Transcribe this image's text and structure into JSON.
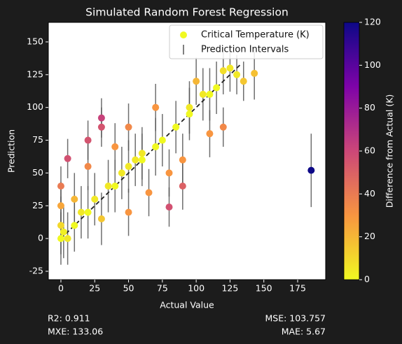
{
  "chart_data": {
    "type": "scatter",
    "title": "Simulated Random Forest Regression",
    "xlabel": "Actual Value",
    "ylabel": "Prediction",
    "colorbar_label": "Difference from Actual (K)",
    "colormap": "plasma_r",
    "clim": [
      0,
      120
    ],
    "cticks": [
      0,
      20,
      40,
      60,
      80,
      100,
      120
    ],
    "legend": [
      "Critical Temperature (K)",
      "Prediction Intervals"
    ],
    "legend_loc": "upper right",
    "xlim": [
      -9.3,
      195.7
    ],
    "ylim": [
      -31.4,
      164.9
    ],
    "xticks": [
      0,
      25,
      50,
      75,
      100,
      125,
      150,
      175
    ],
    "yticks": [
      -25,
      0,
      25,
      50,
      75,
      100,
      125,
      150
    ],
    "errorbar_color": "#555555",
    "reference_line": {
      "x": [
        0,
        133
      ],
      "y": [
        0,
        133
      ],
      "color": "#222222"
    },
    "series": [
      {
        "name": "Critical Temperature (K)",
        "x": [
          0,
          0,
          0,
          0,
          2,
          5,
          10,
          15,
          20,
          20,
          30,
          30,
          25,
          35,
          40,
          45,
          50,
          50,
          55,
          60,
          65,
          70,
          75,
          80,
          80,
          85,
          90,
          95,
          100,
          105,
          110,
          115,
          120,
          125,
          130,
          135,
          143,
          185,
          10,
          40,
          60,
          95,
          20,
          70,
          110,
          30,
          50,
          90,
          5,
          120
        ],
        "values": [
          0,
          10,
          25,
          40,
          5,
          61,
          30,
          20,
          55,
          75,
          92,
          85,
          30,
          40,
          70,
          50,
          20,
          85,
          60,
          65,
          35,
          100,
          75,
          50,
          24,
          85,
          40,
          100,
          120,
          110,
          80,
          115,
          85,
          130,
          125,
          120,
          126,
          52,
          10,
          40,
          60,
          95,
          20,
          70,
          110,
          15,
          55,
          60,
          0,
          128
        ],
        "errors": [
          20,
          22,
          18,
          15,
          20,
          15,
          20,
          20,
          18,
          15,
          15,
          15,
          20,
          20,
          18,
          20,
          18,
          18,
          20,
          20,
          18,
          18,
          20,
          18,
          15,
          20,
          18,
          20,
          18,
          20,
          18,
          20,
          15,
          18,
          15,
          15,
          20,
          28,
          20,
          20,
          20,
          20,
          20,
          22,
          20,
          20,
          20,
          20,
          20,
          18
        ],
        "c": [
          0,
          10,
          25,
          40,
          3,
          56,
          20,
          5,
          35,
          55,
          62,
          55,
          5,
          5,
          30,
          5,
          30,
          35,
          5,
          5,
          30,
          30,
          0,
          30,
          56,
          0,
          50,
          5,
          20,
          5,
          30,
          0,
          35,
          5,
          5,
          15,
          17,
          133,
          0,
          0,
          0,
          0,
          0,
          0,
          0,
          15,
          5,
          30,
          5,
          8
        ]
      }
    ],
    "annotations": {
      "r2": "R2: 0.911",
      "mxe": "MXE: 133.06",
      "mse": "MSE: 103.757",
      "mae": "MAE: 5.67"
    }
  }
}
